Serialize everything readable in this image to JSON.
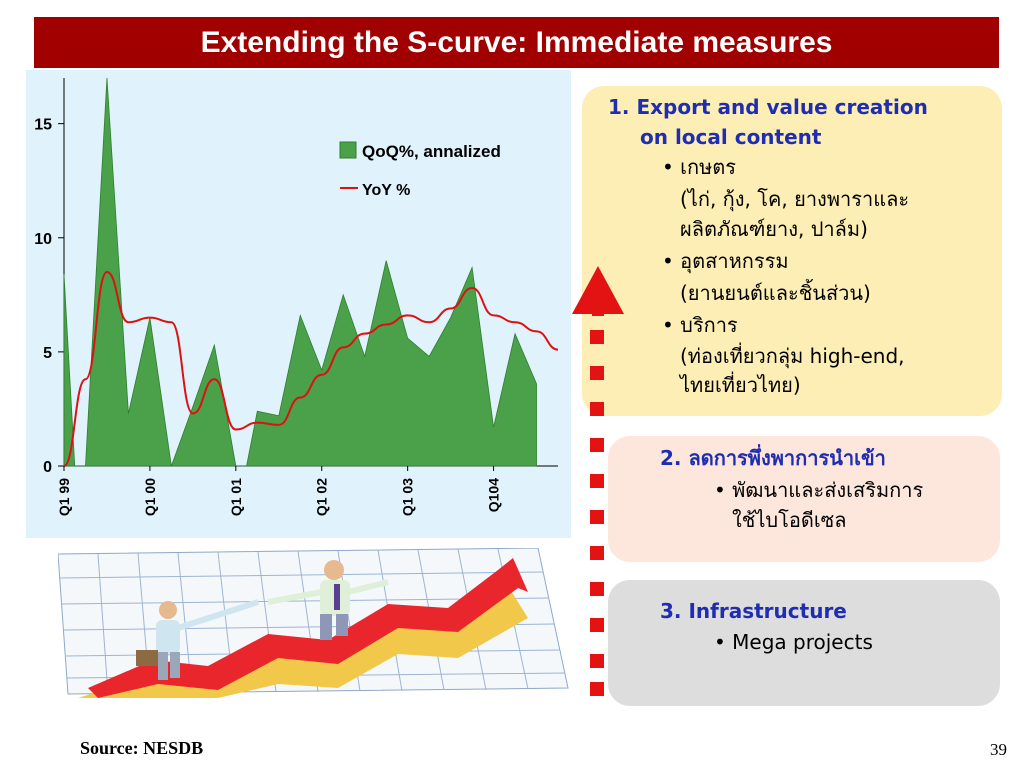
{
  "title": "Extending the S-curve: Immediate measures",
  "chart_data": {
    "type": "area",
    "ylim": [
      0,
      17
    ],
    "yticks": [
      0,
      5,
      10,
      15
    ],
    "x_tick_labels": [
      "Q1 99",
      "Q1 00",
      "Q1 01",
      "Q1 02",
      "Q1 03",
      "Q104"
    ],
    "x_tick_positions": [
      0,
      4,
      8,
      12,
      16,
      20
    ],
    "x": [
      0,
      0.5,
      1,
      2,
      3,
      4,
      5,
      6,
      7,
      8,
      8.5,
      9,
      10,
      11,
      12,
      13,
      14,
      15,
      16,
      17,
      18,
      19,
      20,
      21,
      22,
      23
    ],
    "series": [
      {
        "name": "QoQ%, annalized",
        "kind": "area",
        "color": "#4aa14a",
        "values": [
          8.4,
          0,
          0,
          17,
          2.3,
          6.5,
          0,
          2.6,
          5.3,
          0,
          0,
          2.4,
          2.2,
          6.6,
          4.2,
          7.5,
          4.8,
          9.0,
          5.6,
          4.8,
          6.5,
          8.7,
          1.7,
          5.8,
          3.6,
          null
        ]
      },
      {
        "name": "YoY %",
        "kind": "line",
        "color": "#dd1111",
        "x": [
          0,
          1,
          2,
          3,
          4,
          5,
          6,
          7,
          8,
          9,
          10,
          11,
          12,
          13,
          14,
          15,
          16,
          17,
          18,
          19,
          20,
          21,
          22,
          23
        ],
        "values": [
          0,
          3.8,
          8.5,
          6.3,
          6.5,
          6.3,
          2.3,
          3.8,
          1.6,
          1.9,
          1.8,
          3.0,
          4.0,
          5.2,
          5.8,
          6.2,
          6.6,
          6.3,
          6.9,
          7.8,
          6.6,
          6.3,
          5.9,
          5.1
        ]
      }
    ]
  },
  "legend": {
    "area_label": "QoQ%, annalized",
    "line_label": "YoY %"
  },
  "boxes": {
    "box1": {
      "heading_line1": "1. Export and value creation",
      "heading_line2": "on local content",
      "bullet1": "เกษตร",
      "bullet1_sub1": "(ไก่, กุ้ง, โค, ยางพาราและ",
      "bullet1_sub2": "ผลิตภัณฑ์ยาง, ปาล์ม)",
      "bullet2": "อุตสาหกรรม",
      "bullet2_sub1": "(ยานยนต์และชิ้นส่วน)",
      "bullet3": "บริการ",
      "bullet3_sub1": "(ท่องเที่ยวกลุ่ม high-end,",
      "bullet3_sub2": "ไทยเที่ยวไทย)"
    },
    "box2": {
      "heading": "2. ลดการพึ่งพาการนำเข้า",
      "bullet1": "พัฒนาและส่งเสริมการ",
      "bullet1_sub1": "ใช้ไบโอดีเซล"
    },
    "box3": {
      "heading": "3. Infrastructure",
      "bullet1": "Mega projects"
    }
  },
  "colors": {
    "title_bar": "#a00000",
    "chart_background": "#e0f2fb",
    "box1": "#fdeeb5",
    "box2": "#fde6dc",
    "box3": "#dddddd",
    "heading_text": "#1f2db0",
    "arrow": "#dd1111"
  },
  "footer": {
    "source": "Source: NESDB",
    "page_number": "39"
  }
}
